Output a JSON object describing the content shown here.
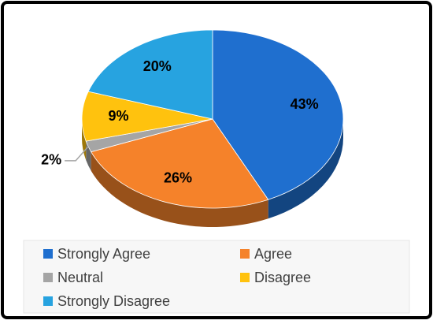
{
  "chart_data": {
    "type": "pie",
    "categories": [
      "Strongly Agree",
      "Agree",
      "Neutral",
      "Disagree",
      "Strongly Disagree"
    ],
    "values": [
      43,
      26,
      2,
      9,
      20
    ],
    "value_labels": [
      "43%",
      "26%",
      "2%",
      "9%",
      "20%"
    ],
    "colors": [
      "#1f6fcf",
      "#f5822a",
      "#a5a5a5",
      "#ffc20e",
      "#27a3e0"
    ],
    "legend": "bottom"
  }
}
